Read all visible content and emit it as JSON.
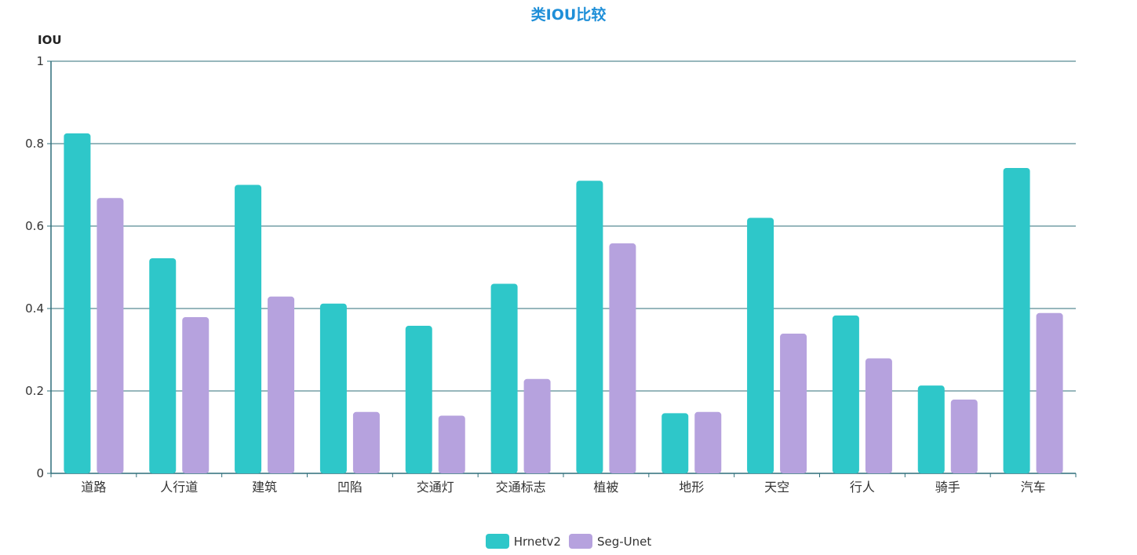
{
  "chart_data": {
    "type": "bar",
    "title": "类IOU比较",
    "ylabel": "IOU",
    "xlabel": "",
    "ylim": [
      0,
      1
    ],
    "yticks": [
      0,
      0.2,
      0.4,
      0.6,
      0.8,
      1
    ],
    "ytick_labels": [
      "0",
      "0.2",
      "0.4",
      "0.6",
      "0.8",
      "1"
    ],
    "grid": true,
    "legend_position": "bottom",
    "categories": [
      "道路",
      "人行道",
      "建筑",
      "凹陷",
      "交通灯",
      "交通标志",
      "植被",
      "地形",
      "天空",
      "行人",
      "骑手",
      "汽车"
    ],
    "series": [
      {
        "name": "Hrnetv2",
        "color": "#2ec7c9",
        "values": [
          0.825,
          0.522,
          0.7,
          0.412,
          0.358,
          0.46,
          0.71,
          0.146,
          0.62,
          0.383,
          0.213,
          0.741
        ]
      },
      {
        "name": "Seg-Unet",
        "color": "#b6a2de",
        "values": [
          0.668,
          0.379,
          0.429,
          0.149,
          0.14,
          0.229,
          0.558,
          0.149,
          0.339,
          0.279,
          0.179,
          0.389
        ]
      }
    ]
  },
  "colors": {
    "title": "#1f8fd8",
    "axis": "#2f6f7a",
    "grid": "#2f6f7a"
  }
}
